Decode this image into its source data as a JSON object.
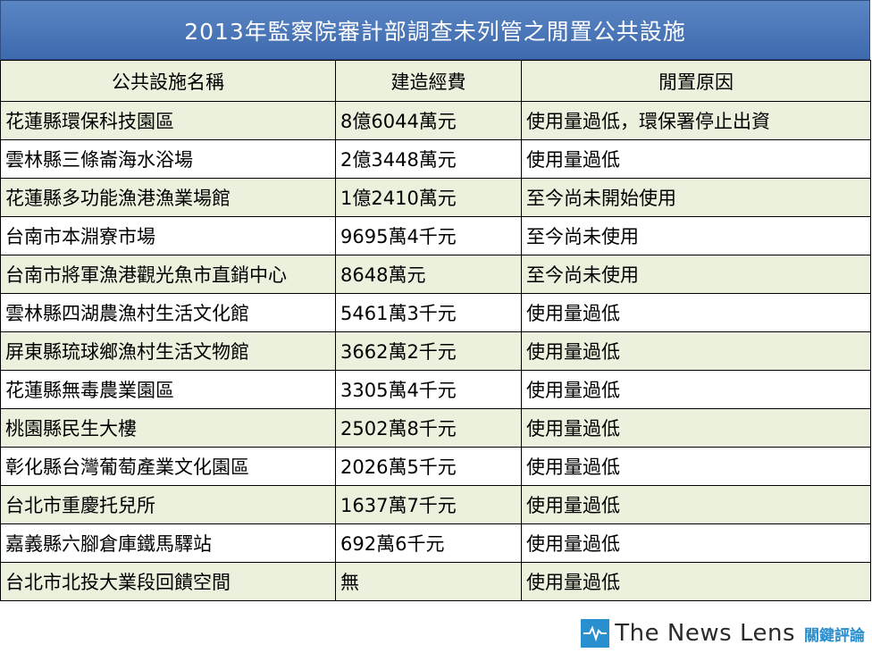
{
  "title": "2013年監察院審計部調查未列管之閒置公共設施",
  "headers": [
    "公共設施名稱",
    "建造經費",
    "閒置原因"
  ],
  "rows": [
    [
      "花蓮縣環保科技園區",
      "8億6044萬元",
      "使用量過低，環保署停止出資"
    ],
    [
      "雲林縣三條崙海水浴場",
      "2億3448萬元",
      "使用量過低"
    ],
    [
      "花蓮縣多功能漁港漁業場館",
      "1億2410萬元",
      "至今尚未開始使用"
    ],
    [
      "台南市本淵寮市場",
      "9695萬4千元",
      "至今尚未使用"
    ],
    [
      "台南市將軍漁港觀光魚市直銷中心",
      "8648萬元",
      "至今尚未使用"
    ],
    [
      "雲林縣四湖農漁村生活文化館",
      "5461萬3千元",
      "使用量過低"
    ],
    [
      "屏東縣琉球鄉漁村生活文物館",
      "3662萬2千元",
      "使用量過低"
    ],
    [
      "花蓮縣無毒農業園區",
      "3305萬4千元",
      "使用量過低"
    ],
    [
      "桃園縣民生大樓",
      "2502萬8千元",
      "使用量過低"
    ],
    [
      "彰化縣台灣葡萄產業文化園區",
      "2026萬5千元",
      "使用量過低"
    ],
    [
      "台北市重慶托兒所",
      "1637萬7千元",
      "使用量過低"
    ],
    [
      "嘉義縣六腳倉庫鐵馬驛站",
      "692萬6千元",
      "使用量過低"
    ],
    [
      "台北市北投大業段回饋空間",
      "無",
      "使用量過低"
    ]
  ],
  "footer": {
    "brand_en": "The News Lens",
    "brand_zh": "關鍵評論",
    "logo_icon": "pulse-line-icon",
    "accent_color": "#2a8fcf"
  }
}
